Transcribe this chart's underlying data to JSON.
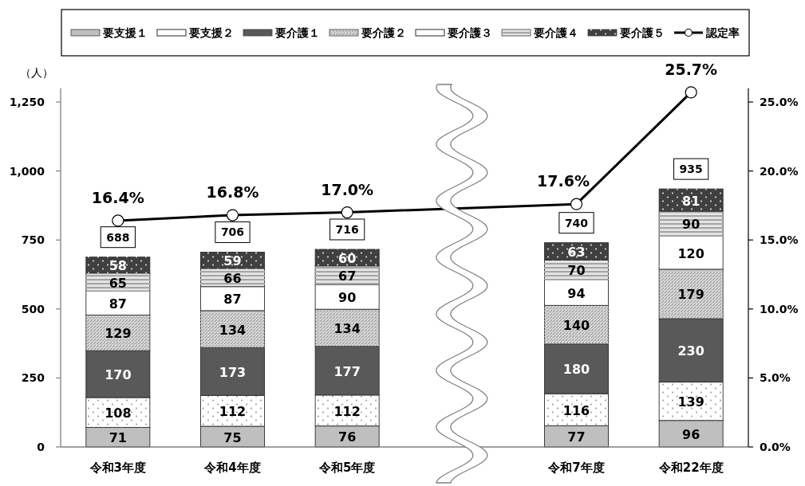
{
  "chart_data": {
    "type": "bar",
    "stacked": true,
    "legend": "top",
    "data_labels": true,
    "ylabel": "（人）",
    "categories": [
      "令和3年度",
      "令和4年度",
      "令和5年度",
      null,
      "令和7年度",
      "令和22年度"
    ],
    "series": [
      {
        "name": "要支援１",
        "color": "#bfbfbf",
        "values": [
          71,
          75,
          76,
          null,
          77,
          96
        ]
      },
      {
        "name": "要支援２",
        "color": "#ffffff",
        "values": [
          108,
          112,
          112,
          null,
          116,
          139
        ]
      },
      {
        "name": "要介護１",
        "color": "#595959",
        "values": [
          170,
          173,
          177,
          null,
          180,
          230
        ]
      },
      {
        "name": "要介護２",
        "color": "#d9d9d9",
        "values": [
          129,
          134,
          134,
          null,
          140,
          179
        ]
      },
      {
        "name": "要介護３",
        "color": "#ffffff",
        "values": [
          87,
          87,
          90,
          null,
          94,
          120
        ]
      },
      {
        "name": "要介護４",
        "color": "#e6e6e6",
        "values": [
          65,
          66,
          67,
          null,
          70,
          90
        ]
      },
      {
        "name": "要介護５",
        "color": "#404040",
        "values": [
          58,
          59,
          60,
          null,
          63,
          81
        ]
      },
      {
        "name": "認定率",
        "type": "line",
        "axis": "y2",
        "color": "#000000",
        "marker": "circle",
        "values": [
          16.4,
          16.8,
          17.0,
          null,
          17.6,
          25.7
        ],
        "value_labels": [
          "16.4%",
          "16.8%",
          "17.0%",
          null,
          "17.6%",
          "25.7%"
        ]
      }
    ],
    "totals": [
      "688",
      "706",
      "716",
      null,
      "740",
      "935"
    ],
    "ylim": [
      0,
      1300
    ],
    "yticks": [
      0,
      250,
      500,
      750,
      {
        "value": 1000,
        "label": "1,000"
      },
      {
        "value": 1250,
        "label": "1,250"
      }
    ],
    "y2lim": [
      0,
      26
    ],
    "y2ticks": [
      {
        "value": 0,
        "label": "0.0%"
      },
      {
        "value": 5,
        "label": "5.0%"
      },
      {
        "value": 10,
        "label": "10.0%"
      },
      {
        "value": 15,
        "label": "15.0%"
      },
      {
        "value": 20,
        "label": "20.0%"
      },
      {
        "value": 25,
        "label": "25.0%"
      }
    ]
  }
}
